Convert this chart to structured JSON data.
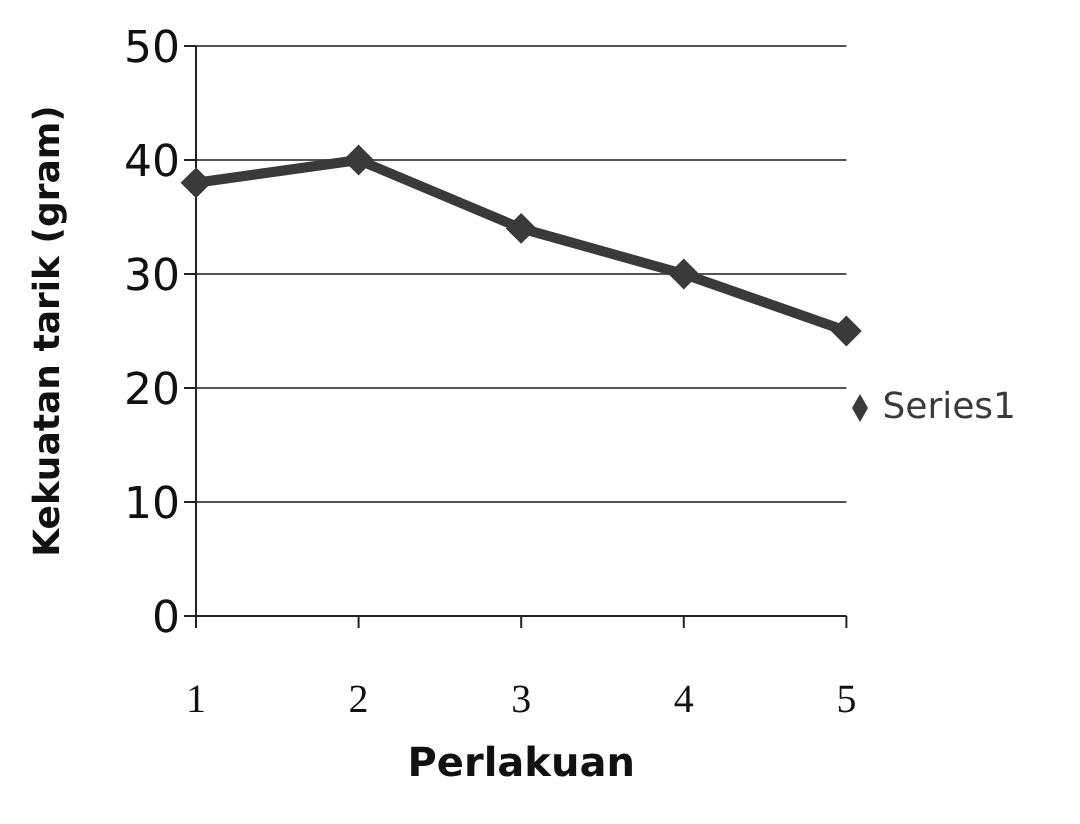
{
  "chart_data": {
    "type": "line",
    "xlabel": "Perlakuan",
    "ylabel": "Kekuatan tarik (gram)",
    "categories": [
      "1",
      "2",
      "3",
      "4",
      "5"
    ],
    "series": [
      {
        "name": "Series1",
        "color": "#3a3a3a",
        "values": [
          38,
          40,
          34,
          30,
          25
        ]
      }
    ],
    "ylim": [
      0,
      50
    ],
    "yticks": [
      0,
      10,
      20,
      30,
      40,
      50
    ],
    "grid": "y",
    "legend": "right",
    "marker": "diamond"
  }
}
